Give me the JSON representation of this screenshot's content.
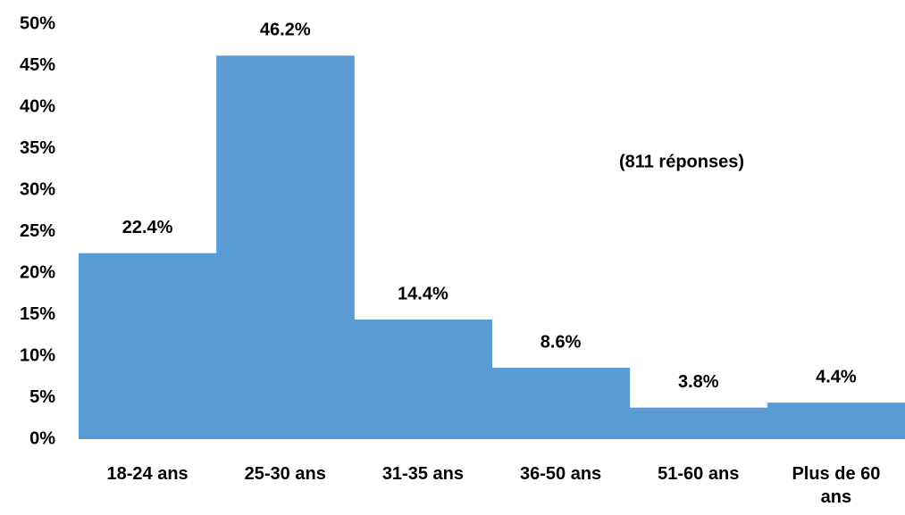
{
  "chart_data": {
    "type": "bar",
    "annotation": "(811 réponses)",
    "categories": [
      "18-24 ans",
      "25-30 ans",
      "31-35 ans",
      "36-50 ans",
      "51-60 ans",
      "Plus de 60 ans"
    ],
    "values": [
      22.4,
      46.2,
      14.4,
      8.6,
      3.8,
      4.4
    ],
    "value_labels": [
      "22.4%",
      "46.2%",
      "14.4%",
      "8.6%",
      "3.8%",
      "4.4%"
    ],
    "color": "#5b9bd5",
    "ylim": [
      0,
      50
    ],
    "yticks": [
      {
        "value": 0,
        "label": "0%"
      },
      {
        "value": 5,
        "label": "5%"
      },
      {
        "value": 10,
        "label": "10%"
      },
      {
        "value": 15,
        "label": "15%"
      },
      {
        "value": 20,
        "label": "20%"
      },
      {
        "value": 25,
        "label": "25%"
      },
      {
        "value": 30,
        "label": "30%"
      },
      {
        "value": 35,
        "label": "35%"
      },
      {
        "value": 40,
        "label": "40%"
      },
      {
        "value": 45,
        "label": "45%"
      },
      {
        "value": 50,
        "label": "50%"
      }
    ],
    "grid": false
  }
}
